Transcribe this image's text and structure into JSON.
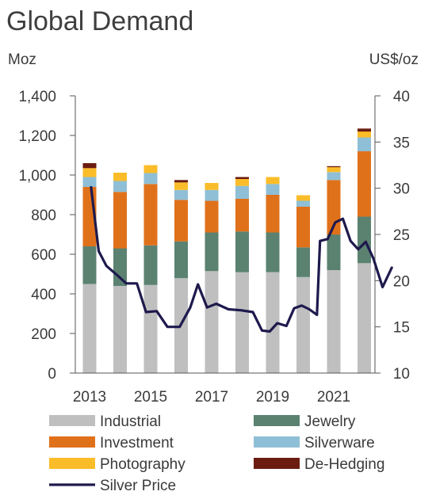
{
  "chart_data": {
    "type": "bar",
    "stacked": true,
    "title": "Global Demand",
    "y_left_unit": "Moz",
    "y_right_unit": "US$/oz",
    "y_left_range": [
      0,
      1400
    ],
    "y_left_ticks": [
      "0",
      "200",
      "400",
      "600",
      "800",
      "1,000",
      "1,200",
      "1,400"
    ],
    "y_right_range": [
      10,
      40
    ],
    "y_right_ticks": [
      "10",
      "15",
      "20",
      "25",
      "30",
      "35",
      "40"
    ],
    "years": [
      2013,
      2014,
      2015,
      2016,
      2017,
      2018,
      2019,
      2020,
      2021,
      2022
    ],
    "x_tick_labels": [
      "2013",
      "2015",
      "2017",
      "2019",
      "2021"
    ],
    "grid": false,
    "legend_position": "bottom",
    "series": [
      {
        "name": "Industrial",
        "color": "#bfbfbf",
        "values": [
          450,
          440,
          445,
          480,
          515,
          510,
          510,
          485,
          520,
          555
        ]
      },
      {
        "name": "Jewelry",
        "color": "#5b8271",
        "values": [
          190,
          190,
          200,
          185,
          195,
          205,
          200,
          150,
          180,
          235
        ]
      },
      {
        "name": "Investment",
        "color": "#e0711b",
        "values": [
          300,
          285,
          310,
          210,
          160,
          165,
          190,
          205,
          275,
          330
        ]
      },
      {
        "name": "Silverware",
        "color": "#8fbfd6",
        "values": [
          50,
          55,
          55,
          50,
          55,
          65,
          55,
          30,
          40,
          70
        ]
      },
      {
        "name": "Photography",
        "color": "#fbbc29",
        "values": [
          45,
          42,
          40,
          38,
          35,
          35,
          35,
          28,
          25,
          30
        ]
      },
      {
        "name": "De-Hedging",
        "color": "#6b1c10",
        "values": [
          25,
          0,
          0,
          12,
          0,
          10,
          0,
          0,
          5,
          15
        ]
      }
    ],
    "line_series": {
      "name": "Silver Price",
      "color": "#1e1a4d",
      "axis": "right",
      "points": [
        [
          2013.05,
          30.1
        ],
        [
          2013.3,
          23.2
        ],
        [
          2013.55,
          21.6
        ],
        [
          2013.9,
          20.6
        ],
        [
          2014.2,
          19.7
        ],
        [
          2014.55,
          19.7
        ],
        [
          2014.85,
          16.6
        ],
        [
          2015.2,
          16.7
        ],
        [
          2015.55,
          15.0
        ],
        [
          2015.95,
          15.0
        ],
        [
          2016.3,
          17.1
        ],
        [
          2016.55,
          19.6
        ],
        [
          2016.85,
          17.1
        ],
        [
          2017.15,
          17.5
        ],
        [
          2017.55,
          16.9
        ],
        [
          2017.95,
          16.8
        ],
        [
          2018.35,
          16.6
        ],
        [
          2018.65,
          14.6
        ],
        [
          2018.9,
          14.5
        ],
        [
          2019.15,
          15.4
        ],
        [
          2019.45,
          15.1
        ],
        [
          2019.7,
          17.0
        ],
        [
          2019.95,
          17.3
        ],
        [
          2020.2,
          16.9
        ],
        [
          2020.45,
          16.3
        ],
        [
          2020.55,
          24.3
        ],
        [
          2020.8,
          24.5
        ],
        [
          2021.05,
          26.3
        ],
        [
          2021.3,
          26.7
        ],
        [
          2021.55,
          24.3
        ],
        [
          2021.8,
          23.4
        ],
        [
          2022.05,
          24.2
        ],
        [
          2022.3,
          22.4
        ],
        [
          2022.6,
          19.3
        ],
        [
          2022.9,
          21.4
        ]
      ]
    }
  }
}
